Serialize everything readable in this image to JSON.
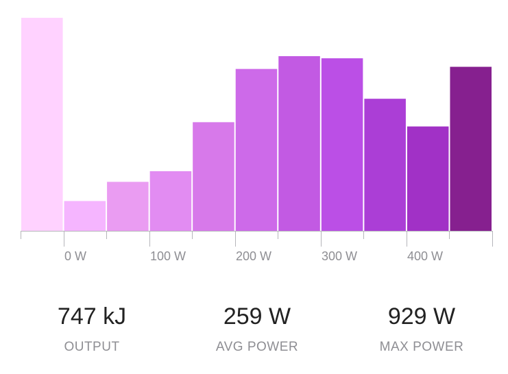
{
  "chart_data": {
    "type": "bar",
    "tick_labels": [
      "0 W",
      "100 W",
      "200 W",
      "300 W",
      "400 W"
    ],
    "values": [
      100,
      14,
      23,
      28,
      51,
      76,
      82,
      81,
      62,
      49,
      77
    ],
    "bar_colors": [
      "#ffd2ff",
      "#f5b5ff",
      "#ea9cf2",
      "#e28cf2",
      "#d779ea",
      "#cd6ae9",
      "#c25ae3",
      "#bb4fe6",
      "#ab3ed6",
      "#a131c6",
      "#86208f"
    ],
    "ylim": [
      0,
      100
    ],
    "xlabel": "",
    "ylabel": "",
    "title": "",
    "grid": false
  },
  "stats": [
    {
      "value": "747 kJ",
      "label": "OUTPUT"
    },
    {
      "value": "259 W",
      "label": "AVG POWER"
    },
    {
      "value": "929 W",
      "label": "MAX POWER"
    }
  ],
  "colors": {
    "axis": "#b5b5ba",
    "tick_text": "#8e8e93",
    "value_text": "#222222"
  }
}
